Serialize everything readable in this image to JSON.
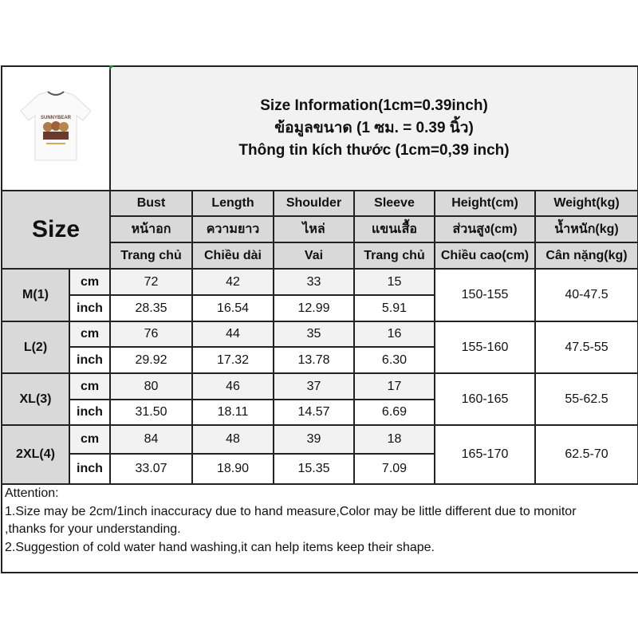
{
  "title": {
    "line1": "Size Information(1cm=0.39inch)",
    "line2": "ข้อมูลขนาด (1 ซม. = 0.39 นิ้ว)",
    "line3": "Thông tin kích thước (1cm=0,39 inch)"
  },
  "product_image": {
    "print_text": "SUNNYBEAR"
  },
  "size_label": "Size",
  "columns": [
    {
      "en": "Bust",
      "th": "หน้าอก",
      "vi": "Trang chủ"
    },
    {
      "en": "Length",
      "th": "ความยาว",
      "vi": "Chiều dài"
    },
    {
      "en": "Shoulder",
      "th": "ไหล่",
      "vi": "Vai"
    },
    {
      "en": "Sleeve",
      "th": "แขนเสื้อ",
      "vi": "Trang chủ"
    },
    {
      "en": "Height(cm)",
      "th": "ส่วนสูง(cm)",
      "vi": "Chiều cao(cm)"
    },
    {
      "en": "Weight(kg)",
      "th": "น้ำหนัก(kg)",
      "vi": "Cân nặng(kg)"
    }
  ],
  "units": {
    "cm": "cm",
    "inch": "inch"
  },
  "sizes": [
    {
      "name": "M(1)",
      "cm": [
        "72",
        "42",
        "33",
        "15"
      ],
      "inch": [
        "28.35",
        "16.54",
        "12.99",
        "5.91"
      ],
      "height": "150-155",
      "weight": "40-47.5"
    },
    {
      "name": "L(2)",
      "cm": [
        "76",
        "44",
        "35",
        "16"
      ],
      "inch": [
        "29.92",
        "17.32",
        "13.78",
        "6.30"
      ],
      "height": "155-160",
      "weight": "47.5-55"
    },
    {
      "name": "XL(3)",
      "cm": [
        "80",
        "46",
        "37",
        "17"
      ],
      "inch": [
        "31.50",
        "18.11",
        "14.57",
        "6.69"
      ],
      "height": "160-165",
      "weight": "55-62.5"
    },
    {
      "name": "2XL(4)",
      "cm": [
        "84",
        "48",
        "39",
        "18"
      ],
      "inch": [
        "33.07",
        "18.90",
        "15.35",
        "7.09"
      ],
      "height": "165-170",
      "weight": "62.5-70"
    }
  ],
  "attention": {
    "heading": "Attention:",
    "line1": "1.Size may be 2cm/1inch inaccuracy due to hand measure,Color may be little different due to monitor",
    "line2": ",thanks for your understanding.",
    "line3": "2.Suggestion of cold water hand washing,it can help items keep their shape."
  },
  "colors": {
    "header_gray": "#d9d9d9",
    "light_gray": "#f2f2f2",
    "border": "#222222"
  }
}
